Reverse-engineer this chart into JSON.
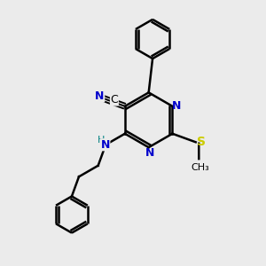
{
  "bg_color": "#ebebeb",
  "bond_color": "#000000",
  "N_color": "#0000cc",
  "S_color": "#cccc00",
  "C_color": "#000000",
  "H_color": "#008080",
  "line_width": 1.8,
  "fig_size": [
    3.0,
    3.0
  ],
  "dpi": 100,
  "xlim": [
    0,
    10
  ],
  "ylim": [
    0,
    10
  ]
}
